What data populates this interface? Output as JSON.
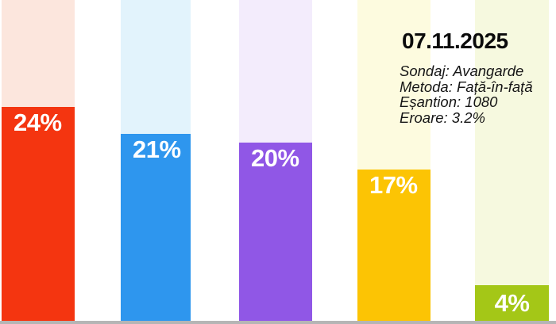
{
  "info_panel": {
    "date": "07.11.2025",
    "lines": [
      "Sondaj: Avangarde",
      "Metoda: Față-în-față",
      "Eșantion: 1080",
      "Eroare: 3.2%"
    ]
  },
  "chart_data": {
    "type": "bar",
    "title": "",
    "xlabel": "",
    "ylabel": "",
    "categories": [
      "red",
      "blue",
      "purple",
      "yellow",
      "green"
    ],
    "values": [
      24,
      21,
      20,
      17,
      4
    ],
    "value_labels": [
      "24%",
      "21%",
      "20%",
      "17%",
      "4%"
    ],
    "unit": "%",
    "ylim": [
      0,
      36
    ],
    "grid": false,
    "legend": "none",
    "series_colors": [
      "#f43510",
      "#2e96ee",
      "#9057e6",
      "#fcc404",
      "#a4c717"
    ],
    "track_colors": [
      "#fce6dd",
      "#e2f3fc",
      "#f3ecfc",
      "#fdfbdf",
      "#f6f9df"
    ],
    "bar_label_color": "#ffffff",
    "baseline_color": "#b5b5b5"
  }
}
